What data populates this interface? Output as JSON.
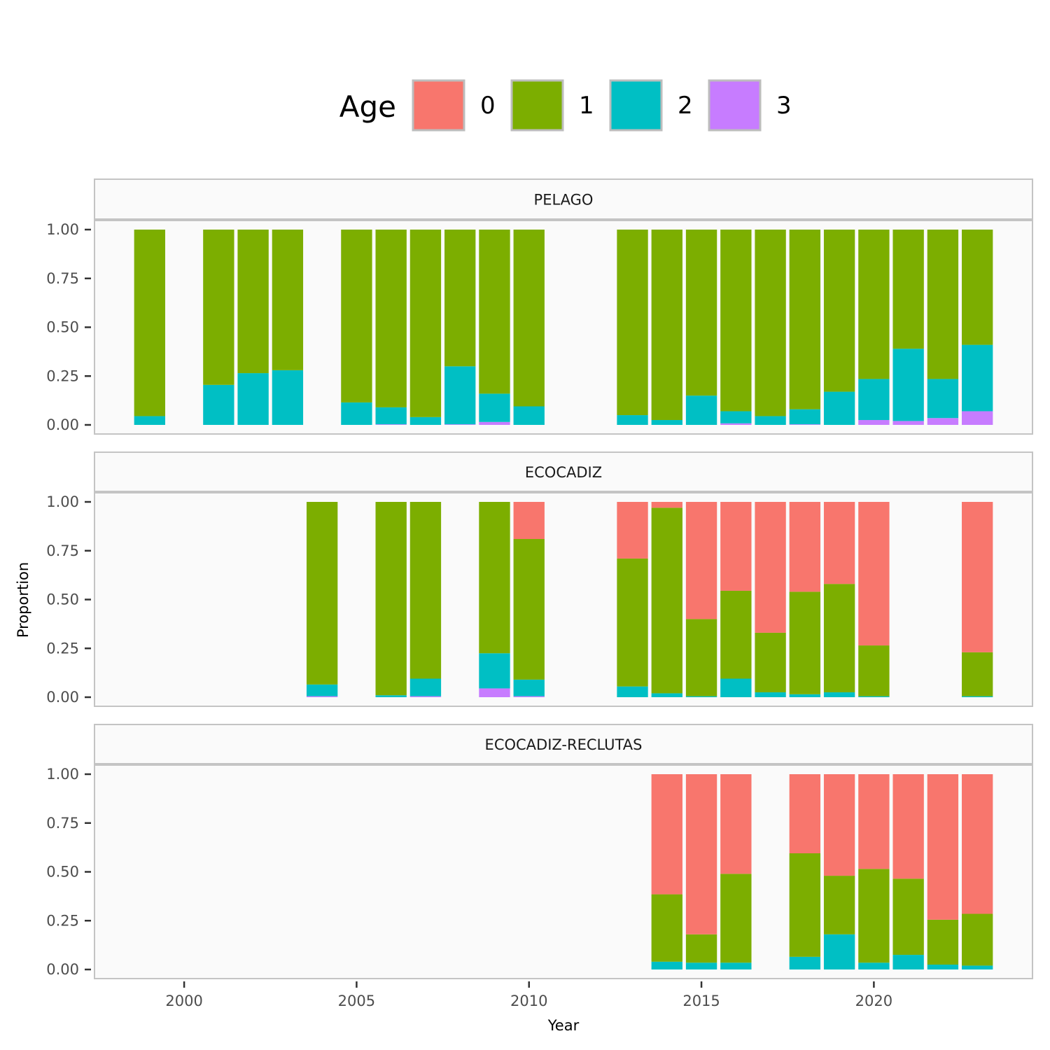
{
  "chart_data": {
    "type": "bar",
    "stacked": true,
    "xlabel": "Year",
    "ylabel": "Proportion",
    "xlim": [
      1997.4,
      2024.6
    ],
    "ylim": [
      0,
      1
    ],
    "x_ticks": [
      "2000",
      "2005",
      "2010",
      "2015",
      "2020"
    ],
    "y_ticks": [
      "0.00",
      "0.25",
      "0.50",
      "0.75",
      "1.00"
    ],
    "legend": {
      "title": "Age",
      "position": "top",
      "items": [
        {
          "label": "0",
          "color": "#F8766D"
        },
        {
          "label": "1",
          "color": "#7CAE00"
        },
        {
          "label": "2",
          "color": "#00BFC4"
        },
        {
          "label": "3",
          "color": "#C77CFF"
        }
      ]
    },
    "panels": [
      {
        "title": "PELAGO",
        "bars": [
          {
            "year": 1999,
            "age0": 0,
            "age1": 0.955,
            "age2": 0.045,
            "age3": 0
          },
          {
            "year": 2001,
            "age0": 0,
            "age1": 0.795,
            "age2": 0.205,
            "age3": 0
          },
          {
            "year": 2002,
            "age0": 0,
            "age1": 0.735,
            "age2": 0.265,
            "age3": 0
          },
          {
            "year": 2003,
            "age0": 0,
            "age1": 0.72,
            "age2": 0.28,
            "age3": 0
          },
          {
            "year": 2005,
            "age0": 0,
            "age1": 0.885,
            "age2": 0.115,
            "age3": 0
          },
          {
            "year": 2006,
            "age0": 0,
            "age1": 0.91,
            "age2": 0.087,
            "age3": 0.003
          },
          {
            "year": 2007,
            "age0": 0,
            "age1": 0.96,
            "age2": 0.04,
            "age3": 0
          },
          {
            "year": 2008,
            "age0": 0,
            "age1": 0.7,
            "age2": 0.297,
            "age3": 0.003
          },
          {
            "year": 2009,
            "age0": 0,
            "age1": 0.84,
            "age2": 0.145,
            "age3": 0.015
          },
          {
            "year": 2010,
            "age0": 0,
            "age1": 0.905,
            "age2": 0.095,
            "age3": 0
          },
          {
            "year": 2013,
            "age0": 0,
            "age1": 0.95,
            "age2": 0.05,
            "age3": 0
          },
          {
            "year": 2014,
            "age0": 0,
            "age1": 0.975,
            "age2": 0.025,
            "age3": 0
          },
          {
            "year": 2015,
            "age0": 0,
            "age1": 0.85,
            "age2": 0.15,
            "age3": 0
          },
          {
            "year": 2016,
            "age0": 0,
            "age1": 0.93,
            "age2": 0.062,
            "age3": 0.008
          },
          {
            "year": 2017,
            "age0": 0,
            "age1": 0.955,
            "age2": 0.045,
            "age3": 0
          },
          {
            "year": 2018,
            "age0": 0,
            "age1": 0.92,
            "age2": 0.077,
            "age3": 0.003
          },
          {
            "year": 2019,
            "age0": 0,
            "age1": 0.83,
            "age2": 0.17,
            "age3": 0
          },
          {
            "year": 2020,
            "age0": 0,
            "age1": 0.765,
            "age2": 0.21,
            "age3": 0.025
          },
          {
            "year": 2021,
            "age0": 0,
            "age1": 0.61,
            "age2": 0.37,
            "age3": 0.02
          },
          {
            "year": 2022,
            "age0": 0,
            "age1": 0.765,
            "age2": 0.2,
            "age3": 0.035
          },
          {
            "year": 2023,
            "age0": 0,
            "age1": 0.59,
            "age2": 0.34,
            "age3": 0.07
          }
        ]
      },
      {
        "title": "ECOCADIZ",
        "bars": [
          {
            "year": 2004,
            "age0": 0,
            "age1": 0.935,
            "age2": 0.06,
            "age3": 0.005
          },
          {
            "year": 2006,
            "age0": 0,
            "age1": 0.99,
            "age2": 0.01,
            "age3": 0
          },
          {
            "year": 2007,
            "age0": 0,
            "age1": 0.905,
            "age2": 0.09,
            "age3": 0.005
          },
          {
            "year": 2009,
            "age0": 0,
            "age1": 0.775,
            "age2": 0.18,
            "age3": 0.045
          },
          {
            "year": 2010,
            "age0": 0.19,
            "age1": 0.72,
            "age2": 0.085,
            "age3": 0.005
          },
          {
            "year": 2013,
            "age0": 0.29,
            "age1": 0.655,
            "age2": 0.055,
            "age3": 0
          },
          {
            "year": 2014,
            "age0": 0.03,
            "age1": 0.95,
            "age2": 0.02,
            "age3": 0
          },
          {
            "year": 2015,
            "age0": 0.6,
            "age1": 0.395,
            "age2": 0.005,
            "age3": 0
          },
          {
            "year": 2016,
            "age0": 0.455,
            "age1": 0.45,
            "age2": 0.095,
            "age3": 0
          },
          {
            "year": 2017,
            "age0": 0.67,
            "age1": 0.305,
            "age2": 0.025,
            "age3": 0
          },
          {
            "year": 2018,
            "age0": 0.46,
            "age1": 0.525,
            "age2": 0.015,
            "age3": 0
          },
          {
            "year": 2019,
            "age0": 0.42,
            "age1": 0.555,
            "age2": 0.025,
            "age3": 0
          },
          {
            "year": 2020,
            "age0": 0.735,
            "age1": 0.26,
            "age2": 0.005,
            "age3": 0
          },
          {
            "year": 2023,
            "age0": 0.77,
            "age1": 0.225,
            "age2": 0.005,
            "age3": 0
          }
        ]
      },
      {
        "title": "ECOCADIZ-RECLUTAS",
        "bars": [
          {
            "year": 2014,
            "age0": 0.615,
            "age1": 0.345,
            "age2": 0.04,
            "age3": 0
          },
          {
            "year": 2015,
            "age0": 0.82,
            "age1": 0.145,
            "age2": 0.035,
            "age3": 0
          },
          {
            "year": 2016,
            "age0": 0.51,
            "age1": 0.455,
            "age2": 0.035,
            "age3": 0
          },
          {
            "year": 2018,
            "age0": 0.405,
            "age1": 0.53,
            "age2": 0.065,
            "age3": 0
          },
          {
            "year": 2019,
            "age0": 0.52,
            "age1": 0.3,
            "age2": 0.18,
            "age3": 0
          },
          {
            "year": 2020,
            "age0": 0.485,
            "age1": 0.48,
            "age2": 0.035,
            "age3": 0
          },
          {
            "year": 2021,
            "age0": 0.535,
            "age1": 0.39,
            "age2": 0.075,
            "age3": 0
          },
          {
            "year": 2022,
            "age0": 0.745,
            "age1": 0.23,
            "age2": 0.025,
            "age3": 0
          },
          {
            "year": 2023,
            "age0": 0.715,
            "age1": 0.265,
            "age2": 0.02,
            "age3": 0
          }
        ]
      }
    ]
  }
}
